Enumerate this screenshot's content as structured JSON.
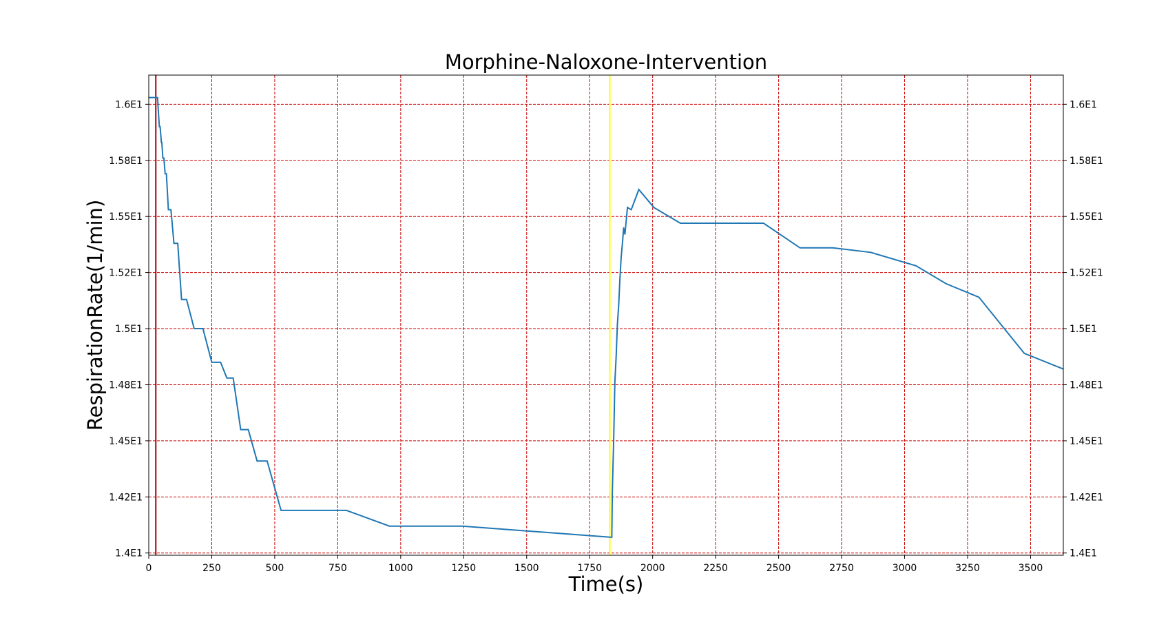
{
  "chart_data": {
    "type": "line",
    "step": true,
    "title": "Morphine-Naloxone-Intervention",
    "xlabel": "Time(s)",
    "ylabel": "RespirationRate(1/min)",
    "xlim": [
      0,
      3630
    ],
    "ylim": [
      13.99,
      16.13
    ],
    "xticks": [
      0,
      250,
      500,
      750,
      1000,
      1250,
      1500,
      1750,
      2000,
      2250,
      2500,
      2750,
      3000,
      3250,
      3500
    ],
    "xtick_labels": [
      "0",
      "250",
      "500",
      "750",
      "1000",
      "1250",
      "1500",
      "1750",
      "2000",
      "2250",
      "2500",
      "2750",
      "3000",
      "3250",
      "3500"
    ],
    "yticks": [
      14.0,
      14.25,
      14.5,
      14.75,
      15.0,
      15.25,
      15.5,
      15.75,
      16.0
    ],
    "ytick_labels": [
      "1.4E1",
      "1.42E1",
      "1.45E1",
      "1.48E1",
      "1.5E1",
      "1.52E1",
      "1.55E1",
      "1.58E1",
      "1.6E1"
    ],
    "right_ticks": true,
    "grid": true,
    "grid_style": "dashed",
    "grid_color": "#cc0000",
    "line_color": "#1f77b4",
    "vlines": [
      {
        "x": 28,
        "color": "#aa0000"
      },
      {
        "x": 1830,
        "color": "#ffff00"
      }
    ],
    "series": [
      {
        "x": [
          0,
          35,
          38,
          42,
          45,
          50,
          52,
          56,
          60,
          65,
          70,
          78,
          88,
          100,
          115,
          130,
          150,
          180,
          215,
          250,
          285,
          310,
          335,
          365,
          395,
          430,
          470,
          525,
          785,
          955,
          1245,
          1835,
          1838,
          1840,
          1845,
          1850,
          1855,
          1860,
          1865,
          1870,
          1875,
          1880,
          1885,
          1890,
          1900,
          1915,
          1945,
          2005,
          2110,
          2440,
          2585,
          2715,
          2865,
          3045,
          3165,
          3295,
          3475,
          3630
        ],
        "y": [
          16.03,
          16.03,
          15.97,
          15.9,
          15.9,
          15.83,
          15.83,
          15.76,
          15.76,
          15.69,
          15.69,
          15.53,
          15.53,
          15.38,
          15.38,
          15.13,
          15.13,
          15.0,
          15.0,
          14.85,
          14.85,
          14.78,
          14.78,
          14.55,
          14.55,
          14.41,
          14.41,
          14.19,
          14.19,
          14.12,
          14.12,
          14.07,
          14.07,
          14.27,
          14.49,
          14.76,
          14.87,
          15.02,
          15.1,
          15.22,
          15.32,
          15.38,
          15.45,
          15.42,
          15.54,
          15.53,
          15.62,
          15.54,
          15.47,
          15.47,
          15.36,
          15.36,
          15.34,
          15.28,
          15.2,
          15.14,
          14.89,
          14.82
        ]
      }
    ]
  }
}
